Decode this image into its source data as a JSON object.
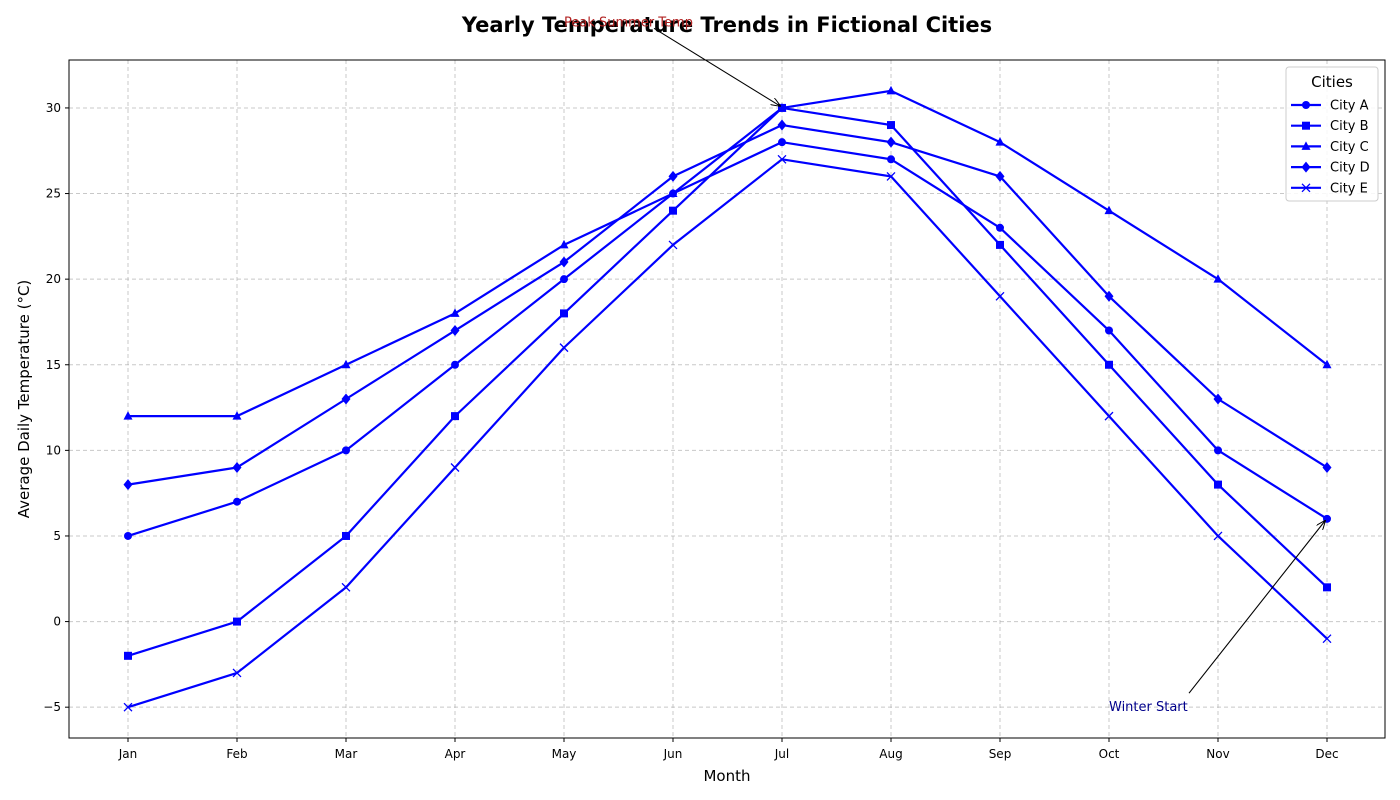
{
  "chart_data": {
    "type": "line",
    "title": "Yearly Temperature Trends in Fictional Cities",
    "xlabel": "Month",
    "ylabel": "Average Daily Temperature (°C)",
    "categories": [
      "Jan",
      "Feb",
      "Mar",
      "Apr",
      "May",
      "Jun",
      "Jul",
      "Aug",
      "Sep",
      "Oct",
      "Nov",
      "Dec"
    ],
    "ylim": [
      -6.8,
      32.8
    ],
    "yticks": [
      -5,
      0,
      5,
      10,
      15,
      20,
      25,
      30
    ],
    "ytick_labels": [
      "−5",
      "0",
      "5",
      "10",
      "15",
      "20",
      "25",
      "30"
    ],
    "grid": true,
    "line_color": "#0000ff",
    "series": [
      {
        "name": "City A",
        "marker": "circle",
        "values": [
          5,
          7,
          10,
          15,
          20,
          25,
          28,
          27,
          23,
          17,
          10,
          6
        ]
      },
      {
        "name": "City B",
        "marker": "square",
        "values": [
          -2,
          0,
          5,
          12,
          18,
          24,
          30,
          29,
          22,
          15,
          8,
          2
        ]
      },
      {
        "name": "City C",
        "marker": "triangle",
        "values": [
          12,
          12,
          15,
          18,
          22,
          25,
          30,
          31,
          28,
          24,
          20,
          15
        ]
      },
      {
        "name": "City D",
        "marker": "diamond",
        "values": [
          8,
          9,
          13,
          17,
          21,
          26,
          29,
          28,
          26,
          19,
          13,
          9
        ]
      },
      {
        "name": "City E",
        "marker": "x",
        "values": [
          -5,
          -3,
          2,
          9,
          16,
          22,
          27,
          26,
          19,
          12,
          5,
          -1
        ]
      }
    ],
    "legend": {
      "title": "Cities",
      "position": "top-right"
    },
    "annotations": [
      {
        "text": "Peak Summer Temp",
        "color": "#b22222",
        "point": {
          "x": "Jul",
          "y": 30
        },
        "text_at": {
          "x": "May",
          "y": 35
        }
      },
      {
        "text": "Winter Start",
        "color": "#00008b",
        "point": {
          "x": "Dec",
          "y": 6
        },
        "text_at": {
          "x": "Oct",
          "y": -5
        }
      }
    ]
  }
}
